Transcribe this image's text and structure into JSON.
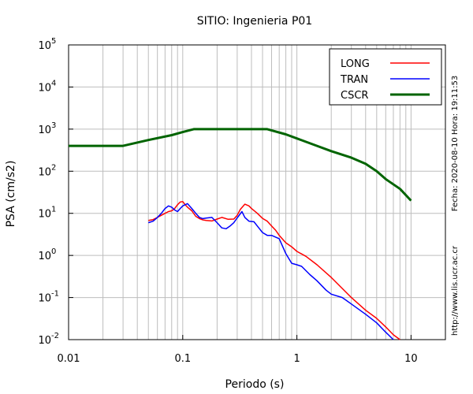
{
  "chart_data": {
    "type": "line",
    "title": "SITIO: Ingenieria P01",
    "xlabel": "Periodo (s)",
    "ylabel": "PSA (cm/s2)",
    "xscale": "log",
    "yscale": "log",
    "xlim": [
      0.01,
      20
    ],
    "ylim": [
      0.01,
      100000
    ],
    "x_ticks": [
      {
        "value": 0.01,
        "label": "0.01"
      },
      {
        "value": 0.1,
        "label": "0.1"
      },
      {
        "value": 1,
        "label": "1"
      },
      {
        "value": 10,
        "label": "10"
      }
    ],
    "y_ticks": [
      {
        "value": 0.01,
        "base": "10",
        "exp": "-2"
      },
      {
        "value": 0.1,
        "base": "10",
        "exp": "-1"
      },
      {
        "value": 1,
        "base": "10",
        "exp": "0"
      },
      {
        "value": 10,
        "base": "10",
        "exp": "1"
      },
      {
        "value": 100,
        "base": "10",
        "exp": "2"
      },
      {
        "value": 1000,
        "base": "10",
        "exp": "3"
      },
      {
        "value": 10000,
        "base": "10",
        "exp": "4"
      },
      {
        "value": 100000,
        "base": "10",
        "exp": "5"
      }
    ],
    "grid": true,
    "legend_position": "top-right",
    "series": [
      {
        "name": "LONG",
        "color": "#ff0000",
        "points": [
          [
            0.05,
            6.8
          ],
          [
            0.055,
            7.1
          ],
          [
            0.06,
            8.0
          ],
          [
            0.065,
            9.0
          ],
          [
            0.07,
            10.0
          ],
          [
            0.075,
            11.0
          ],
          [
            0.08,
            11.5
          ],
          [
            0.085,
            13.0
          ],
          [
            0.09,
            16.0
          ],
          [
            0.095,
            18.5
          ],
          [
            0.1,
            19.0
          ],
          [
            0.105,
            16.0
          ],
          [
            0.11,
            14.0
          ],
          [
            0.12,
            11.5
          ],
          [
            0.13,
            8.5
          ],
          [
            0.14,
            7.5
          ],
          [
            0.15,
            7.0
          ],
          [
            0.16,
            6.8
          ],
          [
            0.18,
            6.6
          ],
          [
            0.2,
            7.3
          ],
          [
            0.22,
            8.0
          ],
          [
            0.25,
            7.2
          ],
          [
            0.28,
            7.3
          ],
          [
            0.3,
            9.0
          ],
          [
            0.32,
            12.5
          ],
          [
            0.35,
            16.5
          ],
          [
            0.38,
            15.0
          ],
          [
            0.4,
            13.0
          ],
          [
            0.45,
            10.0
          ],
          [
            0.5,
            7.6
          ],
          [
            0.55,
            6.5
          ],
          [
            0.6,
            5.0
          ],
          [
            0.65,
            4.0
          ],
          [
            0.7,
            3.0
          ],
          [
            0.8,
            2.0
          ],
          [
            0.9,
            1.6
          ],
          [
            1.0,
            1.25
          ],
          [
            1.2,
            0.95
          ],
          [
            1.5,
            0.6
          ],
          [
            2.0,
            0.3
          ],
          [
            3.0,
            0.1
          ],
          [
            4.0,
            0.05
          ],
          [
            5.0,
            0.032
          ],
          [
            6.0,
            0.02
          ],
          [
            7.0,
            0.013
          ],
          [
            8.0,
            0.01
          ]
        ]
      },
      {
        "name": "TRAN",
        "color": "#0000ff",
        "points": [
          [
            0.05,
            6.0
          ],
          [
            0.055,
            6.5
          ],
          [
            0.06,
            8.0
          ],
          [
            0.065,
            10.0
          ],
          [
            0.07,
            13.0
          ],
          [
            0.075,
            15.0
          ],
          [
            0.08,
            14.0
          ],
          [
            0.085,
            12.0
          ],
          [
            0.09,
            11.0
          ],
          [
            0.095,
            13.0
          ],
          [
            0.1,
            15.0
          ],
          [
            0.105,
            16.0
          ],
          [
            0.11,
            17.0
          ],
          [
            0.12,
            13.0
          ],
          [
            0.13,
            10.0
          ],
          [
            0.14,
            8.0
          ],
          [
            0.15,
            7.5
          ],
          [
            0.16,
            7.7
          ],
          [
            0.18,
            8.0
          ],
          [
            0.2,
            6.0
          ],
          [
            0.22,
            4.5
          ],
          [
            0.24,
            4.3
          ],
          [
            0.26,
            5.0
          ],
          [
            0.28,
            6.0
          ],
          [
            0.3,
            7.8
          ],
          [
            0.33,
            11.0
          ],
          [
            0.35,
            8.0
          ],
          [
            0.38,
            6.5
          ],
          [
            0.42,
            6.3
          ],
          [
            0.45,
            5.0
          ],
          [
            0.5,
            3.5
          ],
          [
            0.55,
            3.0
          ],
          [
            0.6,
            3.0
          ],
          [
            0.7,
            2.5
          ],
          [
            0.8,
            1.1
          ],
          [
            0.9,
            0.65
          ],
          [
            1.0,
            0.6
          ],
          [
            1.1,
            0.55
          ],
          [
            1.3,
            0.35
          ],
          [
            1.5,
            0.25
          ],
          [
            1.8,
            0.15
          ],
          [
            2.0,
            0.12
          ],
          [
            2.5,
            0.1
          ],
          [
            3.0,
            0.07
          ],
          [
            4.0,
            0.04
          ],
          [
            5.0,
            0.025
          ],
          [
            6.0,
            0.015
          ],
          [
            7.0,
            0.01
          ]
        ]
      },
      {
        "name": "CSCR",
        "color": "#006400",
        "points": [
          [
            0.01,
            400
          ],
          [
            0.03,
            400
          ],
          [
            0.05,
            550
          ],
          [
            0.08,
            720
          ],
          [
            0.1,
            850
          ],
          [
            0.125,
            1000
          ],
          [
            0.2,
            1000
          ],
          [
            0.3,
            1000
          ],
          [
            0.55,
            1000
          ],
          [
            0.8,
            750
          ],
          [
            1.0,
            600
          ],
          [
            1.5,
            400
          ],
          [
            2.0,
            300
          ],
          [
            3.0,
            210
          ],
          [
            4.0,
            150
          ],
          [
            5.0,
            100
          ],
          [
            6.0,
            65
          ],
          [
            8.0,
            38
          ],
          [
            10.0,
            20
          ]
        ]
      }
    ],
    "side_labels": {
      "right_top": "Fecha: 2020-08-10 Hora: 19:11:53",
      "right_bottom": "http://www.lis.ucr.ac.cr"
    }
  }
}
